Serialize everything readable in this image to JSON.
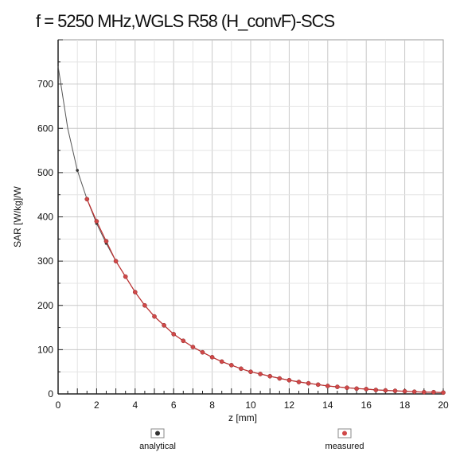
{
  "chart_data": {
    "type": "line",
    "title": "f = 5250 MHz,WGLS R58 (H_convF)-SCS",
    "xlabel": "z [mm]",
    "ylabel": "SAR [W/kg]/W",
    "xlim": [
      0,
      20
    ],
    "ylim": [
      0,
      800
    ],
    "xticks": [
      0,
      2,
      4,
      6,
      8,
      10,
      12,
      14,
      16,
      18,
      20
    ],
    "yticks": [
      0,
      100,
      200,
      300,
      400,
      500,
      600,
      700
    ],
    "grid": true,
    "legend_position": "bottom",
    "series": [
      {
        "name": "analytical",
        "marker_color": "#333333",
        "line_color": "#555555",
        "x": [
          0,
          0.5,
          1,
          1.5,
          2,
          2.5,
          3,
          3.5,
          4,
          4.5,
          5,
          5.5,
          6,
          6.5,
          7,
          7.5,
          8,
          8.5,
          9,
          9.5,
          10,
          11,
          12,
          13,
          14,
          15,
          16,
          17,
          18,
          19,
          20
        ],
        "values": [
          740,
          600,
          505,
          440,
          385,
          340,
          300,
          265,
          230,
          200,
          175,
          155,
          135,
          120,
          106,
          94,
          83,
          73,
          65,
          57,
          50,
          40,
          31,
          24,
          18,
          14,
          11,
          8,
          6,
          4,
          3
        ]
      },
      {
        "name": "measured",
        "marker_color": "#d04848",
        "line_color": "#c03030",
        "x": [
          1.5,
          2,
          2.5,
          3,
          3.5,
          4,
          4.5,
          5,
          5.5,
          6,
          6.5,
          7,
          7.5,
          8,
          8.5,
          9,
          9.5,
          10,
          10.5,
          11,
          11.5,
          12,
          12.5,
          13,
          13.5,
          14,
          14.5,
          15,
          15.5,
          16,
          16.5,
          17,
          17.5,
          18,
          18.5,
          19,
          19.5,
          20
        ],
        "values": [
          440,
          390,
          345,
          300,
          265,
          230,
          200,
          175,
          155,
          135,
          120,
          106,
          94,
          83,
          73,
          65,
          57,
          50,
          45,
          40,
          35,
          31,
          27,
          24,
          21,
          18,
          16,
          14,
          12,
          11,
          9,
          8,
          7,
          6,
          5,
          4,
          4,
          3
        ]
      }
    ]
  }
}
